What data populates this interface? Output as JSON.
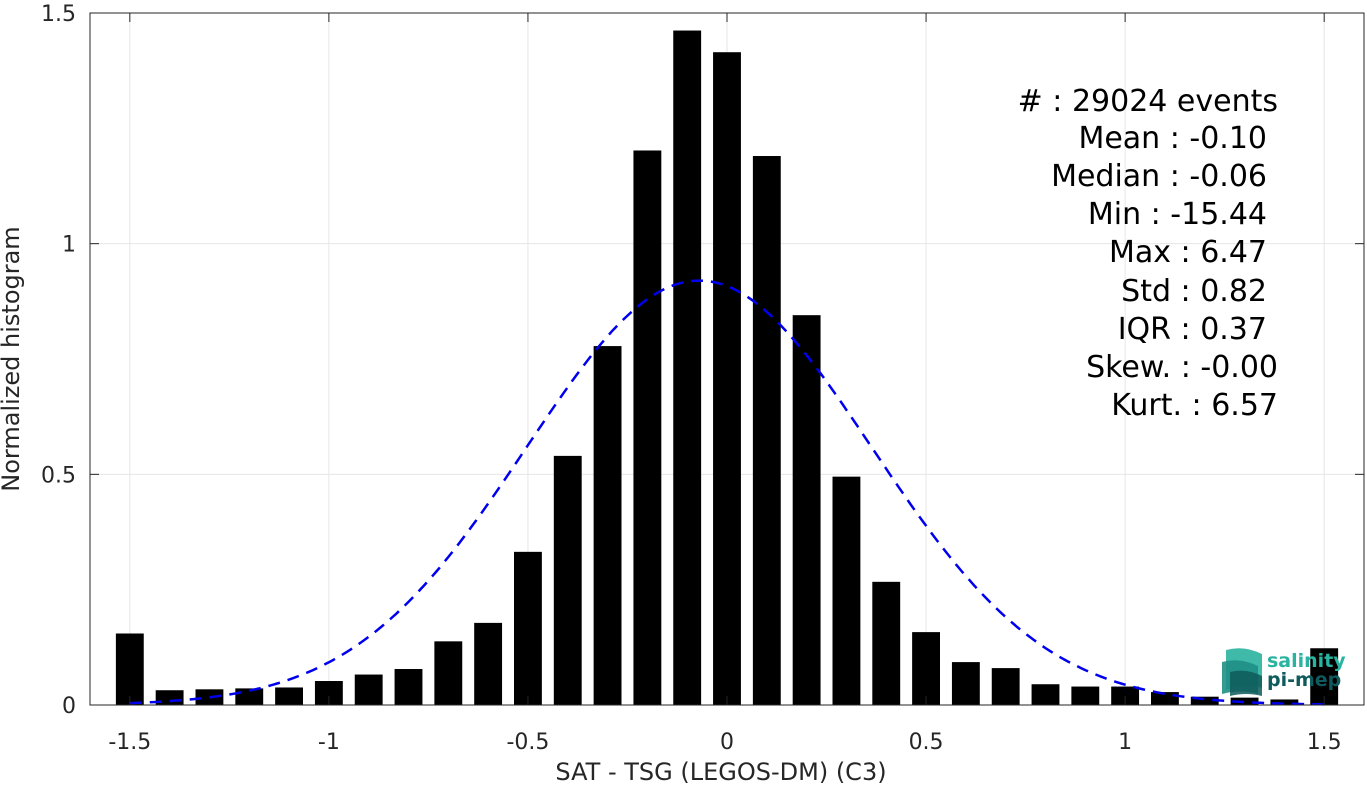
{
  "chart_data": {
    "type": "bar",
    "xlabel": "SAT - TSG (LEGOS-DM) (C3)",
    "ylabel": "Normalized histogram",
    "xlim": [
      -1.6,
      1.6
    ],
    "ylim": [
      0,
      1.5
    ],
    "grid": true,
    "x_ticks": [
      -1.5,
      -1,
      -0.5,
      0,
      0.5,
      1,
      1.5
    ],
    "x_tick_labels": [
      "-1.5",
      "-1",
      "-0.5",
      "0",
      "0.5",
      "1",
      "1.5"
    ],
    "y_ticks": [
      0,
      0.5,
      1,
      1.5
    ],
    "y_tick_labels": [
      "0",
      "0.5",
      "1",
      "1.5"
    ],
    "bar_width": 0.07,
    "bars": {
      "x": [
        -1.5,
        -1.4,
        -1.3,
        -1.2,
        -1.1,
        -1.0,
        -0.9,
        -0.8,
        -0.7,
        -0.6,
        -0.5,
        -0.4,
        -0.3,
        -0.2,
        -0.1,
        0.0,
        0.1,
        0.2,
        0.3,
        0.4,
        0.5,
        0.6,
        0.7,
        0.8,
        0.9,
        1.0,
        1.1,
        1.2,
        1.3,
        1.4,
        1.5
      ],
      "values": [
        0.155,
        0.032,
        0.034,
        0.036,
        0.038,
        0.052,
        0.066,
        0.078,
        0.138,
        0.178,
        0.332,
        0.54,
        0.778,
        1.202,
        1.462,
        1.415,
        1.19,
        0.845,
        0.495,
        0.267,
        0.158,
        0.093,
        0.08,
        0.045,
        0.04,
        0.04,
        0.028,
        0.018,
        0.016,
        0.012,
        0.123
      ],
      "color": "#000000"
    },
    "fit": {
      "type": "gaussian",
      "mean": -0.07,
      "std": 0.434,
      "peak": 0.92,
      "style": "dashed",
      "color": "#0000ee"
    },
    "annotations": [
      "#  : 29024 events",
      "Mean : -0.10",
      "Median : -0.06",
      "Min : -15.44",
      "Max : 6.47",
      "Std : 0.82",
      "IQR : 0.37",
      "Skew. : -0.00",
      "Kurt. : 6.57"
    ]
  },
  "logo": {
    "line1": "salinity",
    "line2": "pi-mep",
    "color_light": "#2ab3a0",
    "color_dark": "#0e5a5c"
  }
}
